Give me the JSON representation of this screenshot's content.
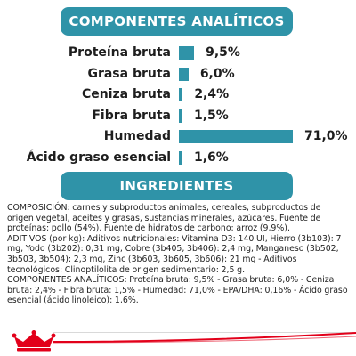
{
  "sections": {
    "analytical_title": "COMPONENTES ANALÍTICOS",
    "ingredients_title": "INGREDIENTES"
  },
  "chart_data": {
    "type": "bar",
    "categories": [
      "Proteína bruta",
      "Grasa bruta",
      "Ceniza bruta",
      "Fibra bruta",
      "Humedad",
      "Ácido graso esencial"
    ],
    "values": [
      9.5,
      6.0,
      2.4,
      1.5,
      71.0,
      1.6
    ],
    "value_labels": [
      "9,5%",
      "6,0%",
      "2,4%",
      "1,5%",
      "71,0%",
      "1,6%"
    ],
    "unit": "%",
    "bar_color": "#2f93a8",
    "title": "COMPONENTES ANALÍTICOS"
  },
  "ingredients": {
    "paragraphs": [
      "COMPOSICIÓN: carnes y subproductos animales, cereales, subproductos de origen vegetal, aceites y grasas, sustancias minerales, azúcares. Fuente de proteínas: pollo (54%). Fuente de hidratos de carbono: arroz (9,9%).",
      "ADITIVOS (por kg): Aditivos nutricionales: Vitamina D3: 140 UI, Hierro (3b103): 7 mg, Yodo (3b202): 0,31 mg, Cobre (3b405, 3b406): 2,4 mg, Manganeso (3b502, 3b503, 3b504): 2,3 mg, Zinc (3b603, 3b605, 3b606): 21 mg - Aditivos tecnológicos: Clinoptilolita de origen sedimentario: 2,5 g.",
      "COMPONENTES ANALÍTICOS: Proteína bruta: 9,5% - Grasa bruta: 6,0% - Ceniza bruta: 2,4% - Fibra bruta: 1,5% - Humedad: 71,0% - EPA/DHA: 0,16% - Ácido graso esencial (ácido linoleico): 1,6%."
    ]
  },
  "colors": {
    "accent": "#2f93a8",
    "brand_red": "#e2001a"
  },
  "logo": {
    "icon": "royal-canin-crown-logo"
  }
}
